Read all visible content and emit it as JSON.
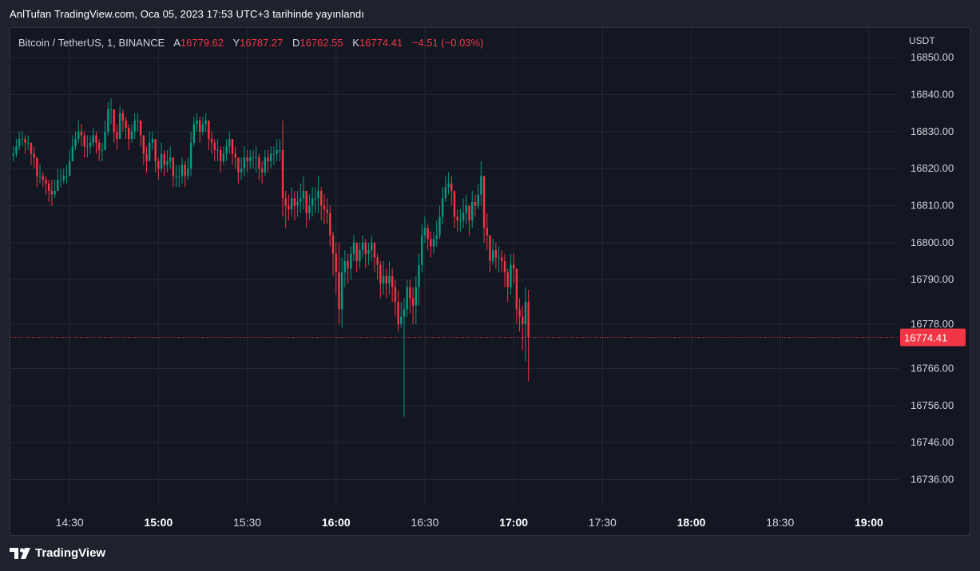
{
  "header": {
    "published_text": "AnlTufan TradingView.com, Oca 05, 2023 17:53 UTC+3 tarihinde yayınlandı"
  },
  "legend": {
    "symbol": "Bitcoin / TetherUS, 1, BINANCE",
    "open_label": "A",
    "open_value": "16779.62",
    "high_label": "Y",
    "high_value": "16787.27",
    "low_label": "D",
    "low_value": "16762.55",
    "close_label": "K",
    "close_value": "16774.41",
    "change": "−4.51 (−0.03%)"
  },
  "footer": {
    "brand": "TradingView"
  },
  "colors": {
    "up": "#089981",
    "down": "#f23645",
    "background": "#131722",
    "grid": "#242832",
    "text": "#d1d4dc"
  },
  "chart_data": {
    "type": "candlestick",
    "currency": "USDT",
    "last_price": 16774.41,
    "last_price_label": "16774.41",
    "y_ticks": [
      "16850.00",
      "16840.00",
      "16830.00",
      "16820.00",
      "16810.00",
      "16800.00",
      "16790.00",
      "16778.00",
      "16766.00",
      "16756.00",
      "16746.00",
      "16736.00"
    ],
    "x_ticks": [
      {
        "label": "14:30",
        "bold": false
      },
      {
        "label": "15:00",
        "bold": true
      },
      {
        "label": "15:30",
        "bold": false
      },
      {
        "label": "16:00",
        "bold": true
      },
      {
        "label": "16:30",
        "bold": false
      },
      {
        "label": "17:00",
        "bold": true
      },
      {
        "label": "17:30",
        "bold": false
      },
      {
        "label": "18:00",
        "bold": true
      },
      {
        "label": "18:30",
        "bold": false
      },
      {
        "label": "19:00",
        "bold": true
      }
    ],
    "ylim": [
      16729,
      16858
    ],
    "xlim_minutes": [
      -20,
      280
    ],
    "x_origin_time": "14:30",
    "closes": [
      16824,
      16826,
      16828,
      16828,
      16827,
      16827,
      16824,
      16823,
      16818,
      16818,
      16817,
      16816,
      16814,
      16813,
      16814,
      16817,
      16817,
      16818,
      16818,
      16822,
      16826,
      16828,
      16830,
      16829,
      16826,
      16826,
      16827,
      16829,
      16827,
      16825,
      16825,
      16830,
      16836,
      16836,
      16830,
      16828,
      16835,
      16833,
      16831,
      16828,
      16830,
      16833,
      16833,
      16829,
      16824,
      16822,
      16827,
      16828,
      16822,
      16820,
      16824,
      16821,
      16822,
      16823,
      16818,
      16818,
      16818,
      16821,
      16818,
      16820,
      16827,
      16832,
      16833,
      16830,
      16832,
      16833,
      16828,
      16827,
      16825,
      16825,
      16822,
      16824,
      16826,
      16828,
      16824,
      16823,
      16819,
      16820,
      16823,
      16822,
      16823,
      16823,
      16823,
      16820,
      16819,
      16823,
      16822,
      16824,
      16824,
      16825,
      16825,
      16812,
      16810,
      16809,
      16812,
      16810,
      16811,
      16812,
      16814,
      16808,
      16810,
      16812,
      16812,
      16814,
      16810,
      16809,
      16808,
      16802,
      16797,
      16792,
      16782,
      16792,
      16795,
      16793,
      16797,
      16800,
      16795,
      16798,
      16800,
      16797,
      16798,
      16800,
      16796,
      16794,
      16789,
      16791,
      16789,
      16791,
      16788,
      16784,
      16778,
      16780,
      16782,
      16788,
      16785,
      16783,
      16788,
      16794,
      16802,
      16804,
      16801,
      16799,
      16801,
      16802,
      16807,
      16812,
      16815,
      16816,
      16814,
      16807,
      16806,
      16806,
      16808,
      16810,
      16806,
      16811,
      16810,
      16813,
      16818,
      16804,
      16802,
      16795,
      16798,
      16796,
      16796,
      16795,
      16792,
      16788,
      16794,
      16793,
      16782,
      16780,
      16778,
      16784,
      16774.41
    ],
    "highs": [
      16826,
      16828,
      16830,
      16830,
      16829,
      16829,
      16827,
      16826,
      16822,
      16821,
      16819,
      16818,
      16817,
      16817,
      16817,
      16820,
      16820,
      16820,
      16821,
      16825,
      16829,
      16830,
      16833,
      16832,
      16830,
      16829,
      16829,
      16831,
      16830,
      16828,
      16827,
      16833,
      16838,
      16839,
      16835,
      16832,
      16837,
      16836,
      16834,
      16832,
      16832,
      16835,
      16835,
      16833,
      16829,
      16826,
      16830,
      16830,
      16826,
      16823,
      16827,
      16825,
      16825,
      16826,
      16822,
      16821,
      16821,
      16823,
      16822,
      16823,
      16830,
      16834,
      16835,
      16834,
      16834,
      16835,
      16833,
      16830,
      16828,
      16828,
      16826,
      16826,
      16828,
      16830,
      16828,
      16826,
      16823,
      16823,
      16826,
      16825,
      16825,
      16825,
      16826,
      16824,
      16822,
      16825,
      16825,
      16826,
      16826,
      16828,
      16828,
      16833,
      16814,
      16813,
      16815,
      16814,
      16814,
      16816,
      16818,
      16814,
      16813,
      16815,
      16815,
      16818,
      16815,
      16813,
      16812,
      16810,
      16803,
      16800,
      16800,
      16796,
      16798,
      16797,
      16799,
      16802,
      16800,
      16800,
      16802,
      16801,
      16800,
      16802,
      16800,
      16797,
      16795,
      16795,
      16793,
      16795,
      16793,
      16790,
      16787,
      16784,
      16785,
      16790,
      16790,
      16788,
      16791,
      16797,
      16805,
      16807,
      16805,
      16803,
      16803,
      16806,
      16810,
      16815,
      16818,
      16819,
      16818,
      16812,
      16809,
      16809,
      16812,
      16813,
      16810,
      16814,
      16813,
      16816,
      16822,
      16818,
      16808,
      16802,
      16801,
      16800,
      16799,
      16798,
      16797,
      16793,
      16797,
      16797,
      16793,
      16785,
      16783,
      16788,
      16787.27
    ],
    "lows": [
      16822,
      16823,
      16825,
      16826,
      16824,
      16825,
      16821,
      16820,
      16815,
      16816,
      16815,
      16813,
      16811,
      16810,
      16812,
      16814,
      16815,
      16816,
      16816,
      16819,
      16822,
      16825,
      16827,
      16826,
      16823,
      16823,
      16824,
      16826,
      16824,
      16822,
      16822,
      16826,
      16829,
      16832,
      16827,
      16825,
      16829,
      16830,
      16828,
      16825,
      16827,
      16828,
      16830,
      16826,
      16821,
      16819,
      16822,
      16825,
      16819,
      16817,
      16819,
      16818,
      16819,
      16820,
      16815,
      16815,
      16815,
      16816,
      16815,
      16817,
      16818,
      16826,
      16830,
      16827,
      16829,
      16830,
      16825,
      16824,
      16822,
      16822,
      16819,
      16821,
      16822,
      16824,
      16821,
      16820,
      16816,
      16817,
      16818,
      16819,
      16820,
      16820,
      16819,
      16817,
      16816,
      16818,
      16819,
      16820,
      16821,
      16822,
      16822,
      16807,
      16804,
      16806,
      16807,
      16806,
      16807,
      16808,
      16809,
      16804,
      16806,
      16807,
      16808,
      16808,
      16806,
      16805,
      16805,
      16799,
      16791,
      16786,
      16778,
      16777,
      16788,
      16789,
      16790,
      16795,
      16792,
      16793,
      16796,
      16793,
      16794,
      16795,
      16792,
      16790,
      16785,
      16786,
      16785,
      16786,
      16784,
      16780,
      16776,
      16777,
      16753,
      16780,
      16781,
      16778,
      16778,
      16783,
      16792,
      16800,
      16798,
      16796,
      16797,
      16799,
      16801,
      16805,
      16811,
      16813,
      16810,
      16804,
      16803,
      16803,
      16804,
      16805,
      16802,
      16804,
      16807,
      16809,
      16810,
      16800,
      16798,
      16792,
      16794,
      16793,
      16792,
      16792,
      16788,
      16784,
      16786,
      16789,
      16778,
      16776,
      16771,
      16768,
      16762.55
    ]
  }
}
